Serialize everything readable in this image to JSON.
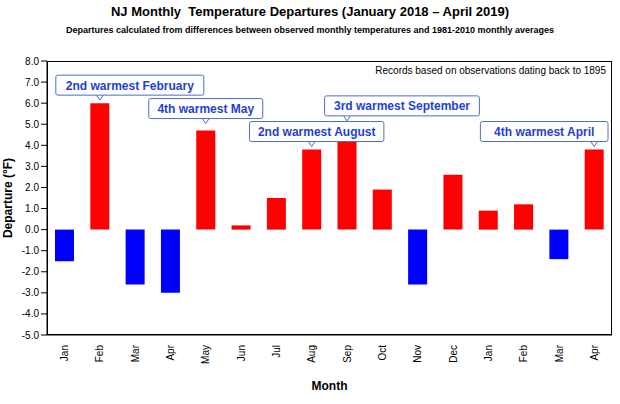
{
  "chart_data": {
    "type": "bar",
    "title": "NJ Monthly  Temperature Departures (January 2018 – April 2019)",
    "subtitle": "Departures calculated from differences between observed monthly temperatures and 1981-2010 monthly averages",
    "note": "Records based on observations dating back to 1895",
    "x_label": "Month",
    "y_label": "Departure (°F)",
    "categories": [
      "Jan",
      "Feb",
      "Mar",
      "Apr",
      "May",
      "Jun",
      "Jul",
      "Aug",
      "Sep",
      "Oct",
      "Nov",
      "Dec",
      "Jan",
      "Feb",
      "Mar",
      "Apr"
    ],
    "values": [
      -1.5,
      6.0,
      -2.6,
      -3.0,
      4.7,
      0.2,
      1.5,
      3.8,
      4.4,
      1.9,
      -2.6,
      2.6,
      0.9,
      1.2,
      -1.4,
      3.8
    ],
    "colors": [
      "#0000ff",
      "#ff0000",
      "#0000ff",
      "#0000ff",
      "#ff0000",
      "#ff0000",
      "#ff0000",
      "#ff0000",
      "#ff0000",
      "#ff0000",
      "#0000ff",
      "#ff0000",
      "#ff0000",
      "#ff0000",
      "#0000ff",
      "#ff0000"
    ],
    "annotations": [
      {
        "text": "2nd warmest February",
        "index": 1
      },
      {
        "text": "4th warmest May",
        "index": 4
      },
      {
        "text": "2nd warmest August",
        "index": 7
      },
      {
        "text": "3rd warmest September",
        "index": 8
      },
      {
        "text": "4th warmest April",
        "index": 15
      }
    ],
    "ylim": [
      -5,
      8
    ],
    "yticks": [
      {
        "value": -5,
        "label": "-5.0"
      },
      {
        "value": -4,
        "label": "-4.0"
      },
      {
        "value": -3,
        "label": "-3.0"
      },
      {
        "value": -2,
        "label": "-2.0"
      },
      {
        "value": -1,
        "label": "-1.0"
      },
      {
        "value": 0,
        "label": "0.0"
      },
      {
        "value": 1,
        "label": "1.0"
      },
      {
        "value": 2,
        "label": "2.0"
      },
      {
        "value": 3,
        "label": "3.0"
      },
      {
        "value": 4,
        "label": "4.0"
      },
      {
        "value": 5,
        "label": "5.0"
      },
      {
        "value": 6,
        "label": "6.0"
      },
      {
        "value": 7,
        "label": "7.0"
      },
      {
        "value": 8,
        "label": "8.0"
      }
    ],
    "grid": false
  }
}
